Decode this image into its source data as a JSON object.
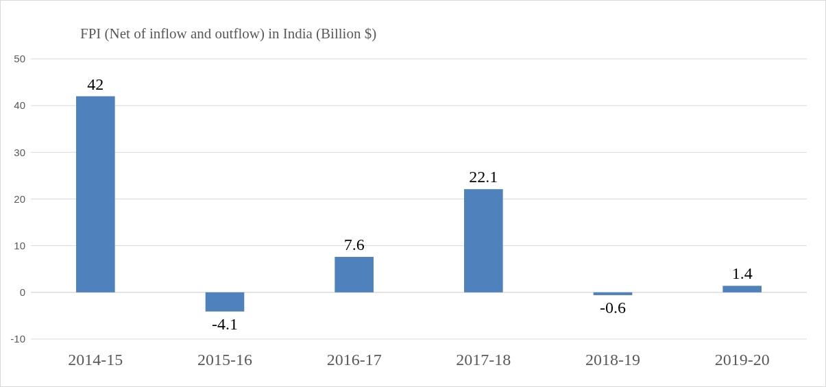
{
  "chart_data": {
    "type": "bar",
    "title": "FPI (Net of inflow and outflow) in India (Billion $)",
    "categories": [
      "2014-15",
      "2015-16",
      "2016-17",
      "2017-18",
      "2018-19",
      "2019-20"
    ],
    "values": [
      42,
      -4.1,
      7.6,
      22.1,
      -0.6,
      1.4
    ],
    "color": "#4f81bd",
    "ylim": [
      -10,
      50
    ],
    "yticks": [
      -10,
      0,
      10,
      20,
      30,
      40,
      50
    ],
    "grid": "y",
    "data_labels": true
  }
}
